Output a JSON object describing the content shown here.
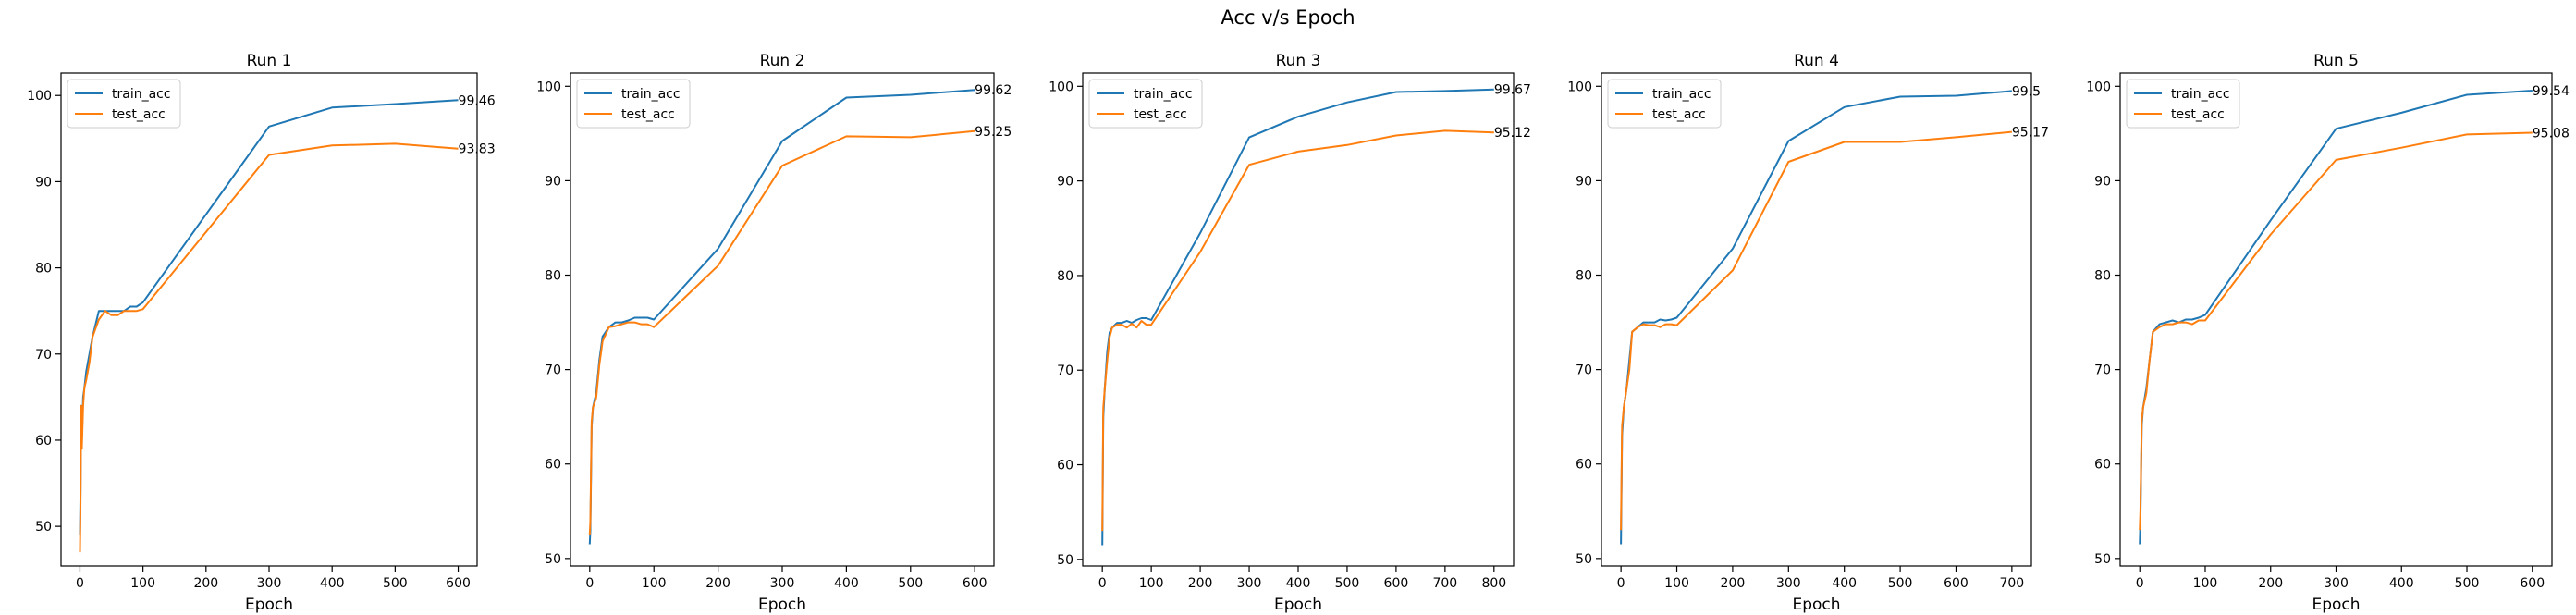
{
  "figure": {
    "title": "Acc v/s Epoch"
  },
  "colors": {
    "train": "#1f77b4",
    "test": "#ff7f0e",
    "axes": "#000000"
  },
  "chart_data": [
    {
      "type": "line",
      "title": "Run 1",
      "xlabel": "Epoch",
      "ylabel": "",
      "xlim": [
        -30,
        630
      ],
      "ylim": [
        45.4,
        102.6
      ],
      "xticks": [
        0,
        100,
        200,
        300,
        400,
        500,
        600
      ],
      "yticks": [
        50,
        60,
        70,
        80,
        90,
        100
      ],
      "legend": "upper-left",
      "grid": false,
      "series": [
        {
          "name": "train_acc",
          "x": [
            0,
            1,
            2,
            3,
            5,
            7,
            10,
            15,
            20,
            25,
            30,
            40,
            50,
            60,
            70,
            80,
            90,
            100,
            300,
            400,
            500,
            600
          ],
          "y": [
            49,
            54,
            64,
            60,
            65,
            66,
            68,
            70,
            72,
            73.5,
            75,
            75,
            75,
            75,
            75,
            75.5,
            75.5,
            76,
            96.4,
            98.6,
            99,
            99.46
          ],
          "end_label": "99.46"
        },
        {
          "name": "test_acc",
          "x": [
            0,
            1,
            2,
            3,
            5,
            7,
            10,
            15,
            20,
            25,
            30,
            40,
            50,
            60,
            70,
            80,
            90,
            100,
            300,
            400,
            500,
            600
          ],
          "y": [
            47,
            53,
            64,
            59,
            64,
            66,
            67,
            69,
            72,
            73,
            74,
            75,
            74.5,
            74.5,
            75,
            75,
            75,
            75.2,
            93.1,
            94.2,
            94.4,
            93.83
          ],
          "end_label": "93.83"
        }
      ]
    },
    {
      "type": "line",
      "title": "Run 2",
      "xlabel": "Epoch",
      "ylabel": "",
      "xlim": [
        -30,
        630
      ],
      "ylim": [
        49.2,
        101.4
      ],
      "xticks": [
        0,
        100,
        200,
        300,
        400,
        500,
        600
      ],
      "yticks": [
        50,
        60,
        70,
        80,
        90,
        100
      ],
      "legend": "upper-left",
      "grid": false,
      "series": [
        {
          "name": "train_acc",
          "x": [
            0,
            1,
            3,
            5,
            10,
            15,
            20,
            30,
            40,
            50,
            60,
            70,
            80,
            90,
            100,
            200,
            300,
            400,
            500,
            600
          ],
          "y": [
            51.5,
            53,
            64,
            66,
            67.5,
            71,
            73.5,
            74.5,
            75,
            75,
            75.2,
            75.5,
            75.5,
            75.5,
            75.3,
            82.8,
            94.2,
            98.8,
            99.1,
            99.62
          ],
          "end_label": "99.62"
        },
        {
          "name": "test_acc",
          "x": [
            0,
            1,
            3,
            5,
            10,
            15,
            20,
            30,
            40,
            50,
            60,
            70,
            80,
            90,
            100,
            200,
            300,
            400,
            500,
            600
          ],
          "y": [
            52.5,
            54,
            64.5,
            66,
            67,
            70.5,
            73,
            74.5,
            74.6,
            74.8,
            75,
            75,
            74.8,
            74.8,
            74.5,
            81,
            91.6,
            94.7,
            94.6,
            95.25
          ],
          "end_label": "95.25"
        }
      ]
    },
    {
      "type": "line",
      "title": "Run 3",
      "xlabel": "Epoch",
      "ylabel": "",
      "xlim": [
        -40,
        840
      ],
      "ylim": [
        49.3,
        101.4
      ],
      "xticks": [
        0,
        100,
        200,
        300,
        400,
        500,
        600,
        700,
        800
      ],
      "yticks": [
        50,
        60,
        70,
        80,
        90,
        100
      ],
      "legend": "upper-left",
      "grid": false,
      "series": [
        {
          "name": "train_acc",
          "x": [
            0,
            2,
            5,
            10,
            15,
            20,
            30,
            40,
            50,
            60,
            70,
            80,
            90,
            100,
            200,
            300,
            400,
            500,
            600,
            700,
            800
          ],
          "y": [
            51.5,
            65,
            68,
            72,
            74,
            74.5,
            75,
            75,
            75.2,
            75,
            75.3,
            75.5,
            75.5,
            75.3,
            84.5,
            94.6,
            96.8,
            98.3,
            99.4,
            99.5,
            99.67
          ],
          "end_label": "99.67"
        },
        {
          "name": "test_acc",
          "x": [
            0,
            2,
            5,
            10,
            15,
            20,
            30,
            40,
            50,
            60,
            70,
            80,
            90,
            100,
            200,
            300,
            400,
            500,
            600,
            700,
            800
          ],
          "y": [
            53,
            66,
            68,
            71,
            73.5,
            74.5,
            74.8,
            74.8,
            74.5,
            74.9,
            74.5,
            75.2,
            74.8,
            74.8,
            82.5,
            91.7,
            93.1,
            93.8,
            94.8,
            95.3,
            95.12
          ],
          "end_label": "95.12"
        }
      ]
    },
    {
      "type": "line",
      "title": "Run 4",
      "xlabel": "Epoch",
      "ylabel": "",
      "xlim": [
        -35,
        735
      ],
      "ylim": [
        49.2,
        101.4
      ],
      "xticks": [
        0,
        100,
        200,
        300,
        400,
        500,
        600,
        700
      ],
      "yticks": [
        50,
        60,
        70,
        80,
        90,
        100
      ],
      "legend": "upper-left",
      "grid": false,
      "series": [
        {
          "name": "train_acc",
          "x": [
            0,
            2,
            5,
            10,
            15,
            20,
            30,
            40,
            50,
            60,
            70,
            80,
            90,
            100,
            200,
            300,
            400,
            500,
            600,
            700
          ],
          "y": [
            51.5,
            63,
            66,
            68,
            71,
            74,
            74.5,
            75,
            75,
            75,
            75.3,
            75.2,
            75.3,
            75.5,
            82.8,
            94.2,
            97.8,
            98.9,
            99,
            99.5
          ],
          "end_label": "99.5"
        },
        {
          "name": "test_acc",
          "x": [
            0,
            2,
            5,
            10,
            15,
            20,
            30,
            40,
            50,
            60,
            70,
            80,
            90,
            100,
            200,
            300,
            400,
            500,
            600,
            700
          ],
          "y": [
            53,
            64,
            66,
            68,
            70,
            74,
            74.5,
            74.8,
            74.7,
            74.7,
            74.5,
            74.8,
            74.8,
            74.7,
            80.5,
            92,
            94.1,
            94.1,
            94.6,
            95.17
          ],
          "end_label": "95.17"
        }
      ]
    },
    {
      "type": "line",
      "title": "Run 5",
      "xlabel": "Epoch",
      "ylabel": "",
      "xlim": [
        -30,
        630
      ],
      "ylim": [
        49.2,
        101.4
      ],
      "xticks": [
        0,
        100,
        200,
        300,
        400,
        500,
        600
      ],
      "yticks": [
        50,
        60,
        70,
        80,
        90,
        100
      ],
      "legend": "upper-left",
      "grid": false,
      "series": [
        {
          "name": "train_acc",
          "x": [
            0,
            1,
            3,
            5,
            10,
            15,
            20,
            30,
            40,
            50,
            60,
            70,
            80,
            90,
            100,
            200,
            300,
            400,
            500,
            600
          ],
          "y": [
            51.5,
            54,
            64,
            66,
            68,
            71,
            74,
            74.8,
            75,
            75.2,
            75,
            75.3,
            75.3,
            75.5,
            75.8,
            85.8,
            95.5,
            97.2,
            99.1,
            99.54
          ],
          "end_label": "99.54"
        },
        {
          "name": "test_acc",
          "x": [
            0,
            1,
            3,
            5,
            10,
            15,
            20,
            30,
            40,
            50,
            60,
            70,
            80,
            90,
            100,
            200,
            300,
            400,
            500,
            600
          ],
          "y": [
            53,
            55,
            64.5,
            66,
            67.5,
            71,
            74,
            74.5,
            74.8,
            74.8,
            75,
            75,
            74.8,
            75.2,
            75.2,
            84.3,
            92.2,
            93.5,
            94.9,
            95.08
          ],
          "end_label": "95.08"
        }
      ]
    }
  ]
}
